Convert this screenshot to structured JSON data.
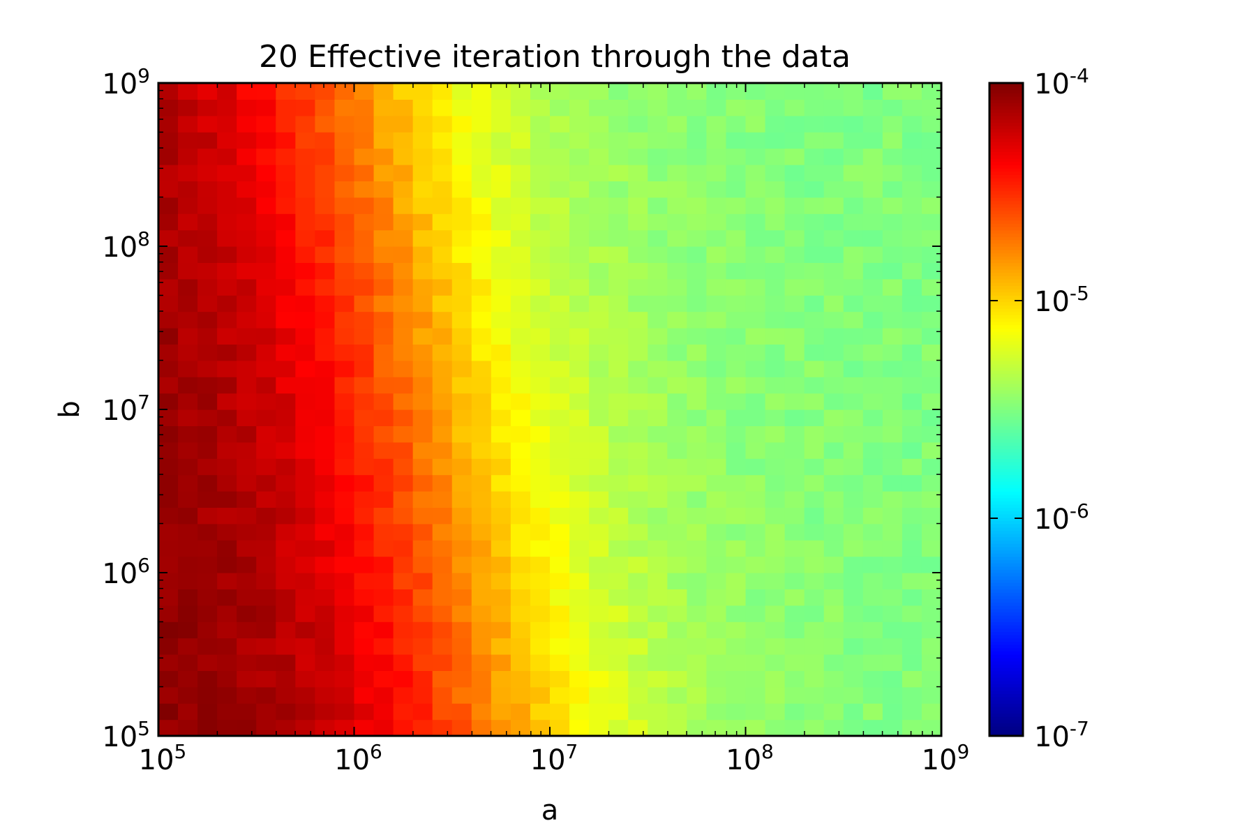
{
  "chart_data": {
    "type": "heatmap",
    "title": "20 Effective iteration through the data",
    "xlabel": "a",
    "ylabel": "b",
    "x_scale": "log",
    "y_scale": "log",
    "xlim": [
      100000,
      1000000000
    ],
    "ylim": [
      100000,
      1000000000
    ],
    "grid": false,
    "grid_cells": [
      40,
      40
    ],
    "x_ticks": [
      {
        "base": "10",
        "exp": "5"
      },
      {
        "base": "10",
        "exp": "6"
      },
      {
        "base": "10",
        "exp": "7"
      },
      {
        "base": "10",
        "exp": "8"
      },
      {
        "base": "10",
        "exp": "9"
      }
    ],
    "y_ticks": [
      {
        "base": "10",
        "exp": "5"
      },
      {
        "base": "10",
        "exp": "6"
      },
      {
        "base": "10",
        "exp": "7"
      },
      {
        "base": "10",
        "exp": "8"
      },
      {
        "base": "10",
        "exp": "9"
      }
    ],
    "colorbar": {
      "colormap": "jet",
      "scale": "log",
      "range": [
        1e-07,
        0.0001
      ],
      "placement": "right",
      "ticks": [
        {
          "base": "10",
          "exp": "-4"
        },
        {
          "base": "10",
          "exp": "-5"
        },
        {
          "base": "10",
          "exp": "-6"
        },
        {
          "base": "10",
          "exp": "-7"
        }
      ]
    },
    "value_model": {
      "description_units": "log10 of plotted value",
      "plateau_low_a_low_b": -4.0,
      "plateau_high_a": -5.5,
      "transition_log10_a_at_b_1e5": 6.7,
      "transition_shift_per_decade_b": -0.18,
      "transition_width_decades": 0.45
    }
  }
}
